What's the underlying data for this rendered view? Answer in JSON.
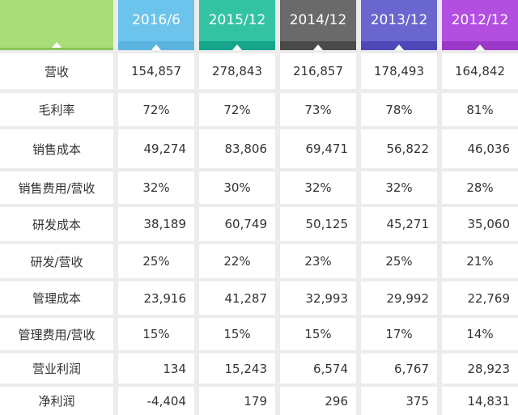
{
  "columns": [
    {
      "label": "2016/6",
      "color": "#6cc3ec",
      "band": "#5ab4e0"
    },
    {
      "label": "2015/12",
      "color": "#33c3a3",
      "band": "#14a58a"
    },
    {
      "label": "2014/12",
      "color": "#6a6a6a",
      "band": "#4a4a4a"
    },
    {
      "label": "2013/12",
      "color": "#6a66cf",
      "band": "#4f47b8"
    },
    {
      "label": "2012/12",
      "color": "#b34fe0",
      "band": "#9a38c8"
    }
  ],
  "rows": [
    {
      "label": "营收",
      "values": [
        "154,857",
        "278,843",
        "216,857",
        "178,493",
        "164,842"
      ],
      "align": "center"
    },
    {
      "label": "毛利率",
      "values": [
        "72%",
        "72%",
        "73%",
        "78%",
        "81%"
      ],
      "align": "center"
    },
    {
      "label": "销售成本",
      "values": [
        "49,274",
        "83,806",
        "69,471",
        "56,822",
        "46,036"
      ],
      "align": "right"
    },
    {
      "label": "销售费用/营收",
      "values": [
        "32%",
        "30%",
        "32%",
        "32%",
        "28%"
      ],
      "align": "center"
    },
    {
      "label": "研发成本",
      "values": [
        "38,189",
        "60,749",
        "50,125",
        "45,271",
        "35,060"
      ],
      "align": "right"
    },
    {
      "label": "研发/营收",
      "values": [
        "25%",
        "22%",
        "23%",
        "25%",
        "21%"
      ],
      "align": "center"
    },
    {
      "label": "管理成本",
      "values": [
        "23,916",
        "41,287",
        "32,993",
        "29,992",
        "22,769"
      ],
      "align": "right"
    },
    {
      "label": "管理费用/营收",
      "values": [
        "15%",
        "15%",
        "15%",
        "17%",
        "14%"
      ],
      "align": "center"
    },
    {
      "label": "营业利润",
      "values": [
        "134",
        "15,243",
        "6,574",
        "6,767",
        "28,923"
      ],
      "align": "right"
    },
    {
      "label": "净利润",
      "values": [
        "-4,404",
        "179",
        "296",
        "375",
        "14,831"
      ],
      "align": "right"
    }
  ]
}
